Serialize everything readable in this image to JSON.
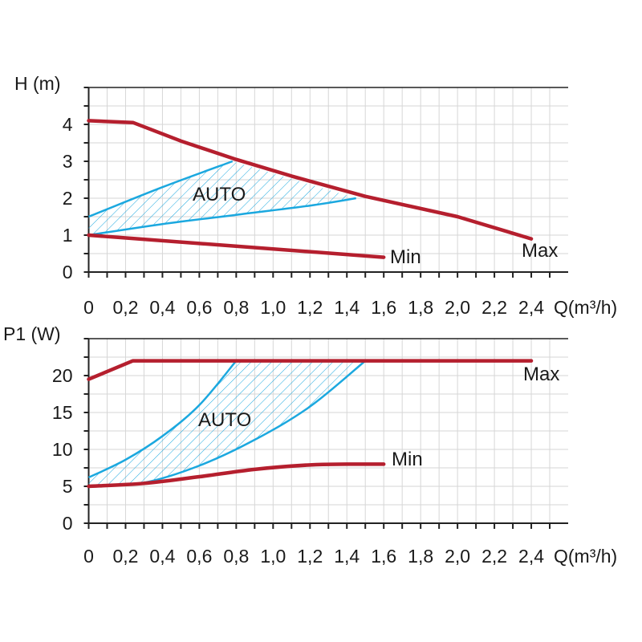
{
  "colors": {
    "max_min": "#b51f2e",
    "auto": "#1ba8df",
    "grid": "#d6d6d6",
    "axis": "#222222"
  },
  "chart_data": [
    {
      "type": "line",
      "title": "",
      "xlabel": "Q(m³/h)",
      "ylabel": "H (m)",
      "xlim": [
        0,
        2.6
      ],
      "ylim": [
        0,
        5
      ],
      "x_ticks": [
        0,
        0.2,
        0.4,
        0.6,
        0.8,
        1.0,
        1.2,
        1.4,
        1.6,
        1.8,
        2.0,
        2.2,
        2.4
      ],
      "x_tick_labels": [
        "0",
        "0,2",
        "0,4",
        "0,6",
        "0,8",
        "1,0",
        "1,2",
        "1,4",
        "1,6",
        "1,8",
        "2,0",
        "2,2",
        "2,4"
      ],
      "y_ticks": [
        0,
        1,
        2,
        3,
        4
      ],
      "y_tick_labels": [
        "0",
        "1",
        "2",
        "3",
        "4"
      ],
      "grid": true,
      "series": [
        {
          "name": "Max",
          "x": [
            0,
            0.24,
            0.5,
            0.8,
            1.1,
            1.5,
            2.0,
            2.4
          ],
          "y": [
            4.1,
            4.05,
            3.55,
            3.05,
            2.6,
            2.05,
            1.5,
            0.9
          ]
        },
        {
          "name": "Min",
          "x": [
            0,
            1.6
          ],
          "y": [
            1.0,
            0.4
          ]
        },
        {
          "name": "AUTO upper",
          "x": [
            0,
            0.4,
            0.78
          ],
          "y": [
            1.5,
            2.3,
            3.0
          ]
        },
        {
          "name": "AUTO lower",
          "x": [
            0,
            0.4,
            0.8,
            1.2,
            1.45
          ],
          "y": [
            1.0,
            1.3,
            1.55,
            1.8,
            2.0
          ]
        }
      ],
      "annotations": [
        "AUTO",
        "Min",
        "Max"
      ]
    },
    {
      "type": "line",
      "title": "",
      "xlabel": "Q(m³/h)",
      "ylabel": "P1 (W)",
      "xlim": [
        0,
        2.6
      ],
      "ylim": [
        0,
        25
      ],
      "x_ticks": [
        0,
        0.2,
        0.4,
        0.6,
        0.8,
        1.0,
        1.2,
        1.4,
        1.6,
        1.8,
        2.0,
        2.2,
        2.4
      ],
      "x_tick_labels": [
        "0",
        "0,2",
        "0,4",
        "0,6",
        "0,8",
        "1,0",
        "1,2",
        "1,4",
        "1,6",
        "1,8",
        "2,0",
        "2,2",
        "2,4"
      ],
      "y_ticks": [
        0,
        5,
        10,
        15,
        20
      ],
      "y_tick_labels": [
        "0",
        "5",
        "10",
        "15",
        "20"
      ],
      "grid": true,
      "series": [
        {
          "name": "Max",
          "x": [
            0,
            0.24,
            2.4
          ],
          "y": [
            19.5,
            22,
            22
          ]
        },
        {
          "name": "Min",
          "x": [
            0,
            0.3,
            0.6,
            0.9,
            1.2,
            1.4,
            1.6
          ],
          "y": [
            5,
            5.4,
            6.3,
            7.3,
            7.9,
            8.0,
            8.0
          ]
        },
        {
          "name": "AUTO left",
          "x": [
            0,
            0.2,
            0.4,
            0.6,
            0.8
          ],
          "y": [
            6.2,
            8.6,
            11.8,
            16.0,
            22
          ]
        },
        {
          "name": "AUTO right",
          "x": [
            0,
            0.3,
            0.6,
            0.9,
            1.2,
            1.5
          ],
          "y": [
            5,
            5.5,
            7.8,
            11.3,
            15.8,
            22
          ]
        }
      ],
      "annotations": [
        "AUTO",
        "Min",
        "Max"
      ]
    }
  ]
}
